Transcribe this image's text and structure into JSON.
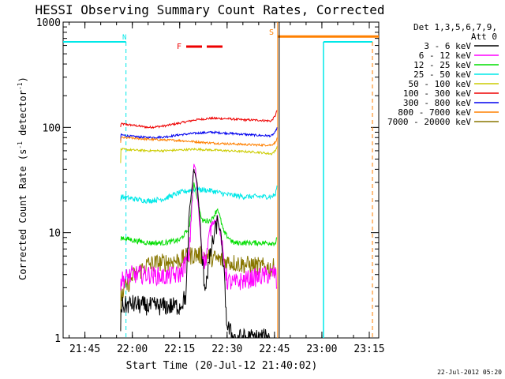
{
  "chart_data": {
    "type": "line",
    "title": "HESSI Observing Summary Count Rates, Corrected",
    "xlabel": "Start Time (20-Jul-12 21:40:02)",
    "ylabel_main": "Corrected Count Rate (s",
    "ylabel_sup1": "-1",
    "ylabel_mid": " detector",
    "ylabel_sup2": "-1",
    "ylabel_end": ")",
    "yscale": "log",
    "ylim": [
      1,
      1000
    ],
    "xlim_minutes": [
      -1.9,
      98
    ],
    "x_origin": "21:40:00",
    "x_ticks": [
      {
        "label": "21:45",
        "min": 5
      },
      {
        "label": "22:00",
        "min": 20
      },
      {
        "label": "22:15",
        "min": 35
      },
      {
        "label": "22:30",
        "min": 50
      },
      {
        "label": "22:45",
        "min": 65
      },
      {
        "label": "23:00",
        "min": 80
      },
      {
        "label": "23:15",
        "min": 95
      }
    ],
    "y_ticks": [
      {
        "label": "1",
        "value": 1
      },
      {
        "label": "10",
        "value": 10
      },
      {
        "label": "100",
        "value": 100
      },
      {
        "label": "1000",
        "value": 1000
      }
    ],
    "legend_header": [
      "Det 1,3,5,6,7,9,",
      "Att 0"
    ],
    "legend": [
      {
        "label": "3 - 6 keV",
        "color": "#000000"
      },
      {
        "label": "6 - 12 keV",
        "color": "#ff00ff"
      },
      {
        "label": "12 - 25 keV",
        "color": "#00dd00"
      },
      {
        "label": "25 - 50 keV",
        "color": "#00e8e8"
      },
      {
        "label": "50 - 100 keV",
        "color": "#cccc00"
      },
      {
        "label": "100 - 300 keV",
        "color": "#ee0000"
      },
      {
        "label": "300 - 800 keV",
        "color": "#0000ee"
      },
      {
        "label": "800 - 7000 keV",
        "color": "#ff8000"
      },
      {
        "label": "7000 - 20000 keV",
        "color": "#887700"
      }
    ],
    "series": [
      {
        "name": "100 - 300 keV",
        "color": "#ee0000",
        "points": [
          [
            16.3,
            100
          ],
          [
            16.4,
            108
          ],
          [
            20,
            105
          ],
          [
            25,
            100
          ],
          [
            30,
            103
          ],
          [
            35,
            110
          ],
          [
            40,
            118
          ],
          [
            45,
            122
          ],
          [
            50,
            121
          ],
          [
            55,
            118
          ],
          [
            60,
            117
          ],
          [
            64,
            115
          ],
          [
            65.3,
            130
          ],
          [
            65.8,
            145
          ]
        ]
      },
      {
        "name": "300 - 800 keV",
        "color": "#0000ee",
        "points": [
          [
            16.3,
            75
          ],
          [
            16.4,
            85
          ],
          [
            20,
            82
          ],
          [
            25,
            80
          ],
          [
            30,
            81
          ],
          [
            35,
            85
          ],
          [
            40,
            88
          ],
          [
            45,
            90
          ],
          [
            50,
            88
          ],
          [
            55,
            86
          ],
          [
            60,
            84
          ],
          [
            64,
            83
          ],
          [
            65.3,
            90
          ],
          [
            65.8,
            100
          ]
        ]
      },
      {
        "name": "800 - 7000 keV",
        "color": "#ff8000",
        "points": [
          [
            16.3,
            70
          ],
          [
            16.4,
            80
          ],
          [
            20,
            79
          ],
          [
            25,
            77
          ],
          [
            30,
            76
          ],
          [
            35,
            75
          ],
          [
            40,
            73
          ],
          [
            45,
            71
          ],
          [
            50,
            70
          ],
          [
            55,
            69
          ],
          [
            60,
            68
          ],
          [
            64,
            68
          ],
          [
            65.3,
            72
          ],
          [
            65.8,
            80
          ]
        ]
      },
      {
        "name": "50 - 100 keV",
        "color": "#cccc00",
        "points": [
          [
            16.3,
            45
          ],
          [
            16.4,
            62
          ],
          [
            20,
            61
          ],
          [
            25,
            60
          ],
          [
            30,
            60
          ],
          [
            35,
            61
          ],
          [
            40,
            62
          ],
          [
            45,
            61
          ],
          [
            50,
            60
          ],
          [
            55,
            59
          ],
          [
            60,
            58
          ],
          [
            64,
            56
          ],
          [
            65.3,
            60
          ],
          [
            65.8,
            66
          ]
        ]
      },
      {
        "name": "25 - 50 keV",
        "color": "#00e8e8",
        "points": [
          [
            16.3,
            20
          ],
          [
            16.4,
            22
          ],
          [
            20,
            21
          ],
          [
            25,
            20
          ],
          [
            30,
            21
          ],
          [
            35,
            24
          ],
          [
            40,
            26
          ],
          [
            45,
            25
          ],
          [
            50,
            23
          ],
          [
            55,
            22
          ],
          [
            60,
            22
          ],
          [
            64,
            22
          ],
          [
            65.3,
            23
          ],
          [
            65.8,
            28
          ]
        ]
      },
      {
        "name": "12 - 25 keV",
        "color": "#00dd00",
        "points": [
          [
            16.3,
            7
          ],
          [
            16.4,
            9
          ],
          [
            20,
            8.5
          ],
          [
            25,
            8
          ],
          [
            30,
            8
          ],
          [
            35,
            8.5
          ],
          [
            38,
            11
          ],
          [
            39.5,
            30
          ],
          [
            42,
            13
          ],
          [
            45,
            13
          ],
          [
            47,
            17
          ],
          [
            49,
            10
          ],
          [
            52,
            8
          ],
          [
            55,
            8
          ],
          [
            60,
            8
          ],
          [
            64,
            8
          ],
          [
            65.3,
            8
          ],
          [
            65.8,
            9
          ]
        ]
      },
      {
        "name": "7000 - 20000 keV",
        "color": "#887700",
        "points": [
          [
            16.3,
            1
          ],
          [
            16.4,
            2.5
          ],
          [
            20,
            3.8
          ],
          [
            25,
            5
          ],
          [
            30,
            5.2
          ],
          [
            35,
            5.5
          ],
          [
            38,
            6
          ],
          [
            40,
            6.2
          ],
          [
            45,
            5.8
          ],
          [
            50,
            5.3
          ],
          [
            55,
            5
          ],
          [
            60,
            4.8
          ],
          [
            64,
            4.6
          ],
          [
            65.3,
            4.7
          ]
        ]
      },
      {
        "name": "6 - 12 keV",
        "color": "#ff00ff",
        "points": [
          [
            16.3,
            3
          ],
          [
            16.4,
            3.5
          ],
          [
            20,
            4
          ],
          [
            25,
            4
          ],
          [
            30,
            3.8
          ],
          [
            35,
            4
          ],
          [
            38,
            6
          ],
          [
            39.5,
            45
          ],
          [
            40,
            40
          ],
          [
            41,
            16
          ],
          [
            42,
            7
          ],
          [
            43,
            5
          ],
          [
            45,
            12
          ],
          [
            47,
            14
          ],
          [
            48.5,
            7
          ],
          [
            50,
            3.5
          ],
          [
            52,
            3.3
          ],
          [
            55,
            3.5
          ],
          [
            60,
            3.8
          ],
          [
            64,
            4
          ],
          [
            65.3,
            4.2
          ],
          [
            65.8,
            3
          ]
        ]
      },
      {
        "name": "3 - 6 keV",
        "color": "#000000",
        "points": [
          [
            16.3,
            1
          ],
          [
            16.4,
            2
          ],
          [
            20,
            2.1
          ],
          [
            25,
            2
          ],
          [
            30,
            2
          ],
          [
            35,
            2
          ],
          [
            37,
            2.5
          ],
          [
            38,
            15
          ],
          [
            39.5,
            40
          ],
          [
            40.5,
            30
          ],
          [
            41.5,
            12
          ],
          [
            42,
            6
          ],
          [
            43,
            3
          ],
          [
            45,
            7
          ],
          [
            47,
            13
          ],
          [
            48,
            10
          ],
          [
            49,
            4
          ],
          [
            50,
            1.3
          ],
          [
            52,
            1
          ],
          [
            55,
            1
          ],
          [
            60,
            1
          ],
          [
            64,
            1
          ]
        ]
      }
    ],
    "flags": {
      "n_label": "N",
      "f_label": "F",
      "s_label": "S"
    },
    "footer_date": "22-Jul-2012 05:20"
  }
}
